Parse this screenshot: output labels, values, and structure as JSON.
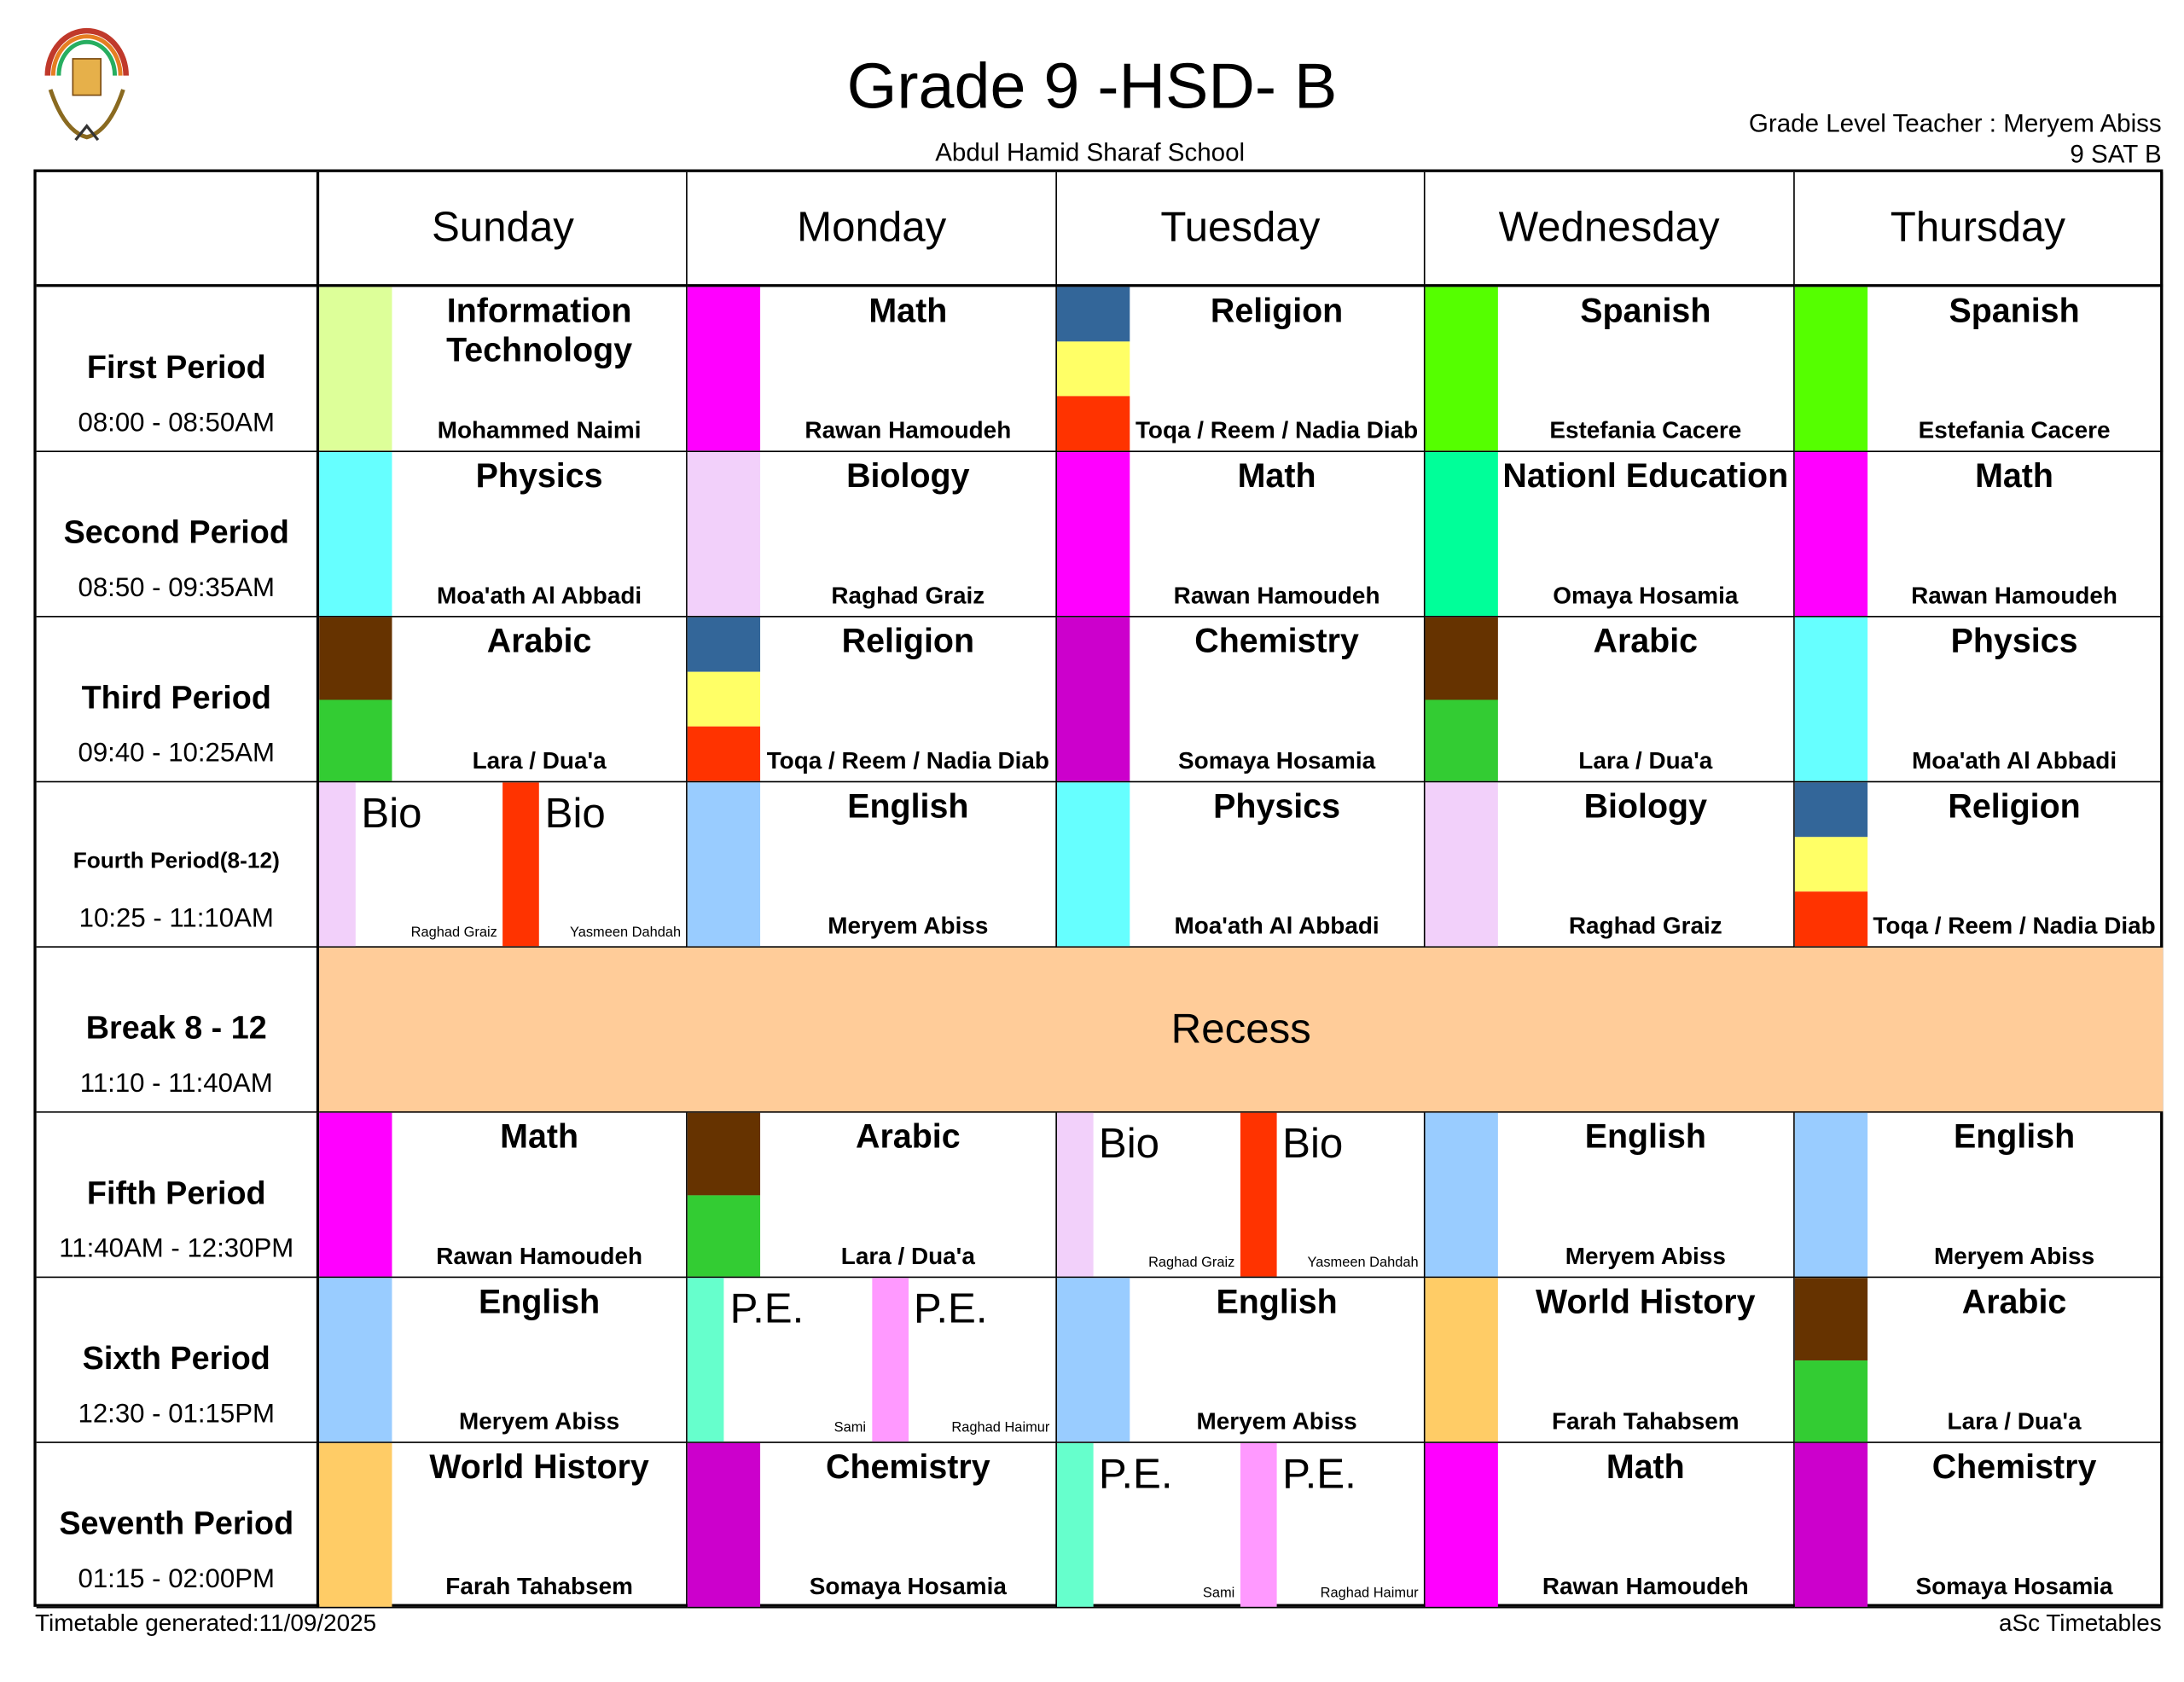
{
  "header": {
    "title": "Grade 9 -HSD- B",
    "school": "Abdul Hamid Sharaf School",
    "grade_level_teacher": "Grade Level Teacher : Meryem Abiss",
    "class_code": "9 SAT B"
  },
  "footer": {
    "generated": "Timetable generated:11/09/2025",
    "brand": "aSc Timetables"
  },
  "days": [
    "Sunday",
    "Monday",
    "Tuesday",
    "Wednesday",
    "Thursday"
  ],
  "periods": [
    {
      "name": "First Period",
      "time": "08:00 - 08:50AM"
    },
    {
      "name": "Second Period",
      "time": "08:50 - 09:35AM"
    },
    {
      "name": "Third Period",
      "time": "09:40 - 10:25AM"
    },
    {
      "name": "Fourth Period(8-12)",
      "time": "10:25 - 11:10AM",
      "small": true
    },
    {
      "name": "Break 8 - 12",
      "time": "11:10 - 11:40AM"
    },
    {
      "name": "Fifth Period",
      "time": "11:40AM - 12:30PM"
    },
    {
      "name": "Sixth Period",
      "time": "12:30 - 01:15PM"
    },
    {
      "name": "Seventh Period",
      "time": "01:15 - 02:00PM"
    }
  ],
  "recess": {
    "label": "Recess",
    "color": "#ffcc99",
    "period_index": 4
  },
  "grid": [
    [
      {
        "subject": "Information Technology",
        "teacher": "Mohammed Naimi",
        "colors": [
          "#ddff99"
        ]
      },
      {
        "subject": "Math",
        "teacher": "Rawan Hamoudeh",
        "colors": [
          "#ff00ff"
        ]
      },
      {
        "subject": "Religion",
        "teacher": "Toqa / Reem / Nadia Diab",
        "colors": [
          "#336699",
          "#ffff66",
          "#ff3300"
        ]
      },
      {
        "subject": "Spanish",
        "teacher": "Estefania Cacere",
        "colors": [
          "#55ff00"
        ]
      },
      {
        "subject": "Spanish",
        "teacher": "Estefania Cacere",
        "colors": [
          "#55ff00"
        ]
      }
    ],
    [
      {
        "subject": "Physics",
        "teacher": "Moa'ath Al Abbadi",
        "colors": [
          "#66ffff"
        ]
      },
      {
        "subject": "Biology",
        "teacher": "Raghad Graiz",
        "colors": [
          "#f2d0fa"
        ]
      },
      {
        "subject": "Math",
        "teacher": "Rawan Hamoudeh",
        "colors": [
          "#ff00ff"
        ]
      },
      {
        "subject": "Nationl Education",
        "teacher": "Omaya Hosamia",
        "colors": [
          "#00ff99"
        ]
      },
      {
        "subject": "Math",
        "teacher": "Rawan Hamoudeh",
        "colors": [
          "#ff00ff"
        ]
      }
    ],
    [
      {
        "subject": "Arabic",
        "teacher": "Lara / Dua'a",
        "colors": [
          "#663300",
          "#33cc33"
        ]
      },
      {
        "subject": "Religion",
        "teacher": "Toqa / Reem / Nadia Diab",
        "colors": [
          "#336699",
          "#ffff66",
          "#ff3300"
        ]
      },
      {
        "subject": "Chemistry",
        "teacher": "Somaya Hosamia",
        "colors": [
          "#cc00cc"
        ]
      },
      {
        "subject": "Arabic",
        "teacher": "Lara / Dua'a",
        "colors": [
          "#663300",
          "#33cc33"
        ]
      },
      {
        "subject": "Physics",
        "teacher": "Moa'ath Al Abbadi",
        "colors": [
          "#66ffff"
        ]
      }
    ],
    [
      {
        "split": [
          {
            "subject": "Bio",
            "teacher": "Raghad Graiz",
            "color": "#f2d0fa"
          },
          {
            "subject": "Bio",
            "teacher": "Yasmeen Dahdah",
            "color": "#ff3300"
          }
        ]
      },
      {
        "subject": "English",
        "teacher": "Meryem Abiss",
        "colors": [
          "#99ccff"
        ]
      },
      {
        "subject": "Physics",
        "teacher": "Moa'ath Al Abbadi",
        "colors": [
          "#66ffff"
        ]
      },
      {
        "subject": "Biology",
        "teacher": "Raghad Graiz",
        "colors": [
          "#f2d0fa"
        ]
      },
      {
        "subject": "Religion",
        "teacher": "Toqa / Reem / Nadia Diab",
        "colors": [
          "#336699",
          "#ffff66",
          "#ff3300"
        ]
      }
    ],
    null,
    [
      {
        "subject": "Math",
        "teacher": "Rawan Hamoudeh",
        "colors": [
          "#ff00ff"
        ]
      },
      {
        "subject": "Arabic",
        "teacher": "Lara / Dua'a",
        "colors": [
          "#663300",
          "#33cc33"
        ]
      },
      {
        "split": [
          {
            "subject": "Bio",
            "teacher": "Raghad Graiz",
            "color": "#f2d0fa"
          },
          {
            "subject": "Bio",
            "teacher": "Yasmeen Dahdah",
            "color": "#ff3300"
          }
        ]
      },
      {
        "subject": "English",
        "teacher": "Meryem Abiss",
        "colors": [
          "#99ccff"
        ]
      },
      {
        "subject": "English",
        "teacher": "Meryem Abiss",
        "colors": [
          "#99ccff"
        ]
      }
    ],
    [
      {
        "subject": "English",
        "teacher": "Meryem Abiss",
        "colors": [
          "#99ccff"
        ]
      },
      {
        "split": [
          {
            "subject": "P.E.",
            "teacher": "Sami",
            "color": "#66ffcc"
          },
          {
            "subject": "P.E.",
            "teacher": "Raghad Haimur",
            "color": "#ff99ff"
          }
        ]
      },
      {
        "subject": "English",
        "teacher": "Meryem Abiss",
        "colors": [
          "#99ccff"
        ]
      },
      {
        "subject": "World History",
        "teacher": "Farah Tahabsem",
        "colors": [
          "#ffcc66"
        ]
      },
      {
        "subject": "Arabic",
        "teacher": "Lara / Dua'a",
        "colors": [
          "#663300",
          "#33cc33"
        ]
      }
    ],
    [
      {
        "subject": "World History",
        "teacher": "Farah Tahabsem",
        "colors": [
          "#ffcc66"
        ]
      },
      {
        "subject": "Chemistry",
        "teacher": "Somaya Hosamia",
        "colors": [
          "#cc00cc"
        ]
      },
      {
        "split": [
          {
            "subject": "P.E.",
            "teacher": "Sami",
            "color": "#66ffcc"
          },
          {
            "subject": "P.E.",
            "teacher": "Raghad Haimur",
            "color": "#ff99ff"
          }
        ]
      },
      {
        "subject": "Math",
        "teacher": "Rawan Hamoudeh",
        "colors": [
          "#ff00ff"
        ]
      },
      {
        "subject": "Chemistry",
        "teacher": "Somaya Hosamia",
        "colors": [
          "#cc00cc"
        ]
      }
    ]
  ]
}
